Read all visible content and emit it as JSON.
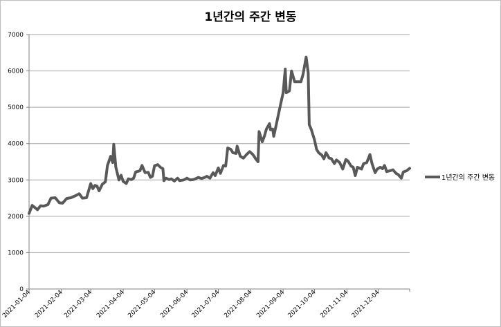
{
  "chart_data": {
    "type": "line",
    "title": "1년간의 주간 변동",
    "xlabel": "",
    "ylabel": "",
    "ylim": [
      0,
      7000
    ],
    "yticks": [
      0,
      1000,
      2000,
      3000,
      4000,
      5000,
      6000,
      7000
    ],
    "xticks": [
      "2021-01-04",
      "2021-02-04",
      "2021-03-04",
      "2021-04-04",
      "2021-05-04",
      "2021-06-04",
      "2021-07-04",
      "2021-08-04",
      "2021-09-04",
      "2021-10-04",
      "2021-11-04",
      "2021-12-04"
    ],
    "grid": true,
    "legend_position": "right",
    "series": [
      {
        "name": "1년간의 주간 변동",
        "color": "#595959",
        "points": [
          [
            "2021-01-04",
            2080
          ],
          [
            "2021-01-07",
            2300
          ],
          [
            "2021-01-10",
            2230
          ],
          [
            "2021-01-12",
            2180
          ],
          [
            "2021-01-15",
            2290
          ],
          [
            "2021-01-18",
            2280
          ],
          [
            "2021-01-22",
            2320
          ],
          [
            "2021-01-25",
            2500
          ],
          [
            "2021-01-29",
            2510
          ],
          [
            "2021-02-02",
            2370
          ],
          [
            "2021-02-05",
            2360
          ],
          [
            "2021-02-09",
            2490
          ],
          [
            "2021-02-13",
            2510
          ],
          [
            "2021-02-17",
            2560
          ],
          [
            "2021-02-21",
            2620
          ],
          [
            "2021-02-24",
            2500
          ],
          [
            "2021-02-28",
            2510
          ],
          [
            "2021-03-04",
            2900
          ],
          [
            "2021-03-06",
            2760
          ],
          [
            "2021-03-08",
            2850
          ],
          [
            "2021-03-10",
            2830
          ],
          [
            "2021-03-12",
            2700
          ],
          [
            "2021-03-15",
            2880
          ],
          [
            "2021-03-18",
            2950
          ],
          [
            "2021-03-20",
            3400
          ],
          [
            "2021-03-23",
            3650
          ],
          [
            "2021-03-25",
            3480
          ],
          [
            "2021-03-26",
            3980
          ],
          [
            "2021-03-28",
            3350
          ],
          [
            "2021-03-31",
            3000
          ],
          [
            "2021-04-02",
            3130
          ],
          [
            "2021-04-04",
            2960
          ],
          [
            "2021-04-07",
            2900
          ],
          [
            "2021-04-09",
            3030
          ],
          [
            "2021-04-12",
            3010
          ],
          [
            "2021-04-14",
            3050
          ],
          [
            "2021-04-16",
            3220
          ],
          [
            "2021-04-20",
            3250
          ],
          [
            "2021-04-22",
            3400
          ],
          [
            "2021-04-25",
            3200
          ],
          [
            "2021-04-28",
            3210
          ],
          [
            "2021-04-30",
            3070
          ],
          [
            "2021-05-02",
            3100
          ],
          [
            "2021-05-04",
            3390
          ],
          [
            "2021-05-07",
            3420
          ],
          [
            "2021-05-10",
            3340
          ],
          [
            "2021-05-12",
            3310
          ],
          [
            "2021-05-13",
            2980
          ],
          [
            "2021-05-15",
            3050
          ],
          [
            "2021-05-18",
            3010
          ],
          [
            "2021-05-20",
            3030
          ],
          [
            "2021-05-23",
            2970
          ],
          [
            "2021-05-26",
            3050
          ],
          [
            "2021-05-28",
            2980
          ],
          [
            "2021-06-01",
            3000
          ],
          [
            "2021-06-04",
            3050
          ],
          [
            "2021-06-07",
            3000
          ],
          [
            "2021-06-10",
            3010
          ],
          [
            "2021-06-12",
            3030
          ],
          [
            "2021-06-15",
            3070
          ],
          [
            "2021-06-18",
            3040
          ],
          [
            "2021-06-21",
            3070
          ],
          [
            "2021-06-23",
            3100
          ],
          [
            "2021-06-26",
            3050
          ],
          [
            "2021-06-29",
            3200
          ],
          [
            "2021-07-01",
            3120
          ],
          [
            "2021-07-04",
            3330
          ],
          [
            "2021-07-06",
            3180
          ],
          [
            "2021-07-09",
            3400
          ],
          [
            "2021-07-11",
            3380
          ],
          [
            "2021-07-13",
            3880
          ],
          [
            "2021-07-16",
            3840
          ],
          [
            "2021-07-18",
            3750
          ],
          [
            "2021-07-21",
            3730
          ],
          [
            "2021-07-22",
            3930
          ],
          [
            "2021-07-25",
            3650
          ],
          [
            "2021-07-28",
            3600
          ],
          [
            "2021-07-31",
            3700
          ],
          [
            "2021-08-03",
            3780
          ],
          [
            "2021-08-06",
            3700
          ],
          [
            "2021-08-09",
            3570
          ],
          [
            "2021-08-11",
            3500
          ],
          [
            "2021-08-12",
            4330
          ],
          [
            "2021-08-15",
            4050
          ],
          [
            "2021-08-17",
            4200
          ],
          [
            "2021-08-19",
            4400
          ],
          [
            "2021-08-22",
            4550
          ],
          [
            "2021-08-23",
            4380
          ],
          [
            "2021-08-25",
            4400
          ],
          [
            "2021-08-26",
            4200
          ],
          [
            "2021-08-29",
            4600
          ],
          [
            "2021-09-01",
            5000
          ],
          [
            "2021-09-04",
            5400
          ],
          [
            "2021-09-06",
            6050
          ],
          [
            "2021-09-07",
            5400
          ],
          [
            "2021-09-10",
            5450
          ],
          [
            "2021-09-12",
            6000
          ],
          [
            "2021-09-15",
            5700
          ],
          [
            "2021-09-17",
            5700
          ],
          [
            "2021-09-21",
            5700
          ],
          [
            "2021-09-23",
            5900
          ],
          [
            "2021-09-26",
            6380
          ],
          [
            "2021-09-28",
            5950
          ],
          [
            "2021-09-29",
            4520
          ],
          [
            "2021-10-01",
            4380
          ],
          [
            "2021-10-04",
            4100
          ],
          [
            "2021-10-06",
            3840
          ],
          [
            "2021-10-08",
            3750
          ],
          [
            "2021-10-11",
            3680
          ],
          [
            "2021-10-13",
            3580
          ],
          [
            "2021-10-15",
            3750
          ],
          [
            "2021-10-18",
            3600
          ],
          [
            "2021-10-20",
            3590
          ],
          [
            "2021-10-23",
            3450
          ],
          [
            "2021-10-25",
            3550
          ],
          [
            "2021-10-28",
            3480
          ],
          [
            "2021-10-31",
            3300
          ],
          [
            "2021-11-03",
            3560
          ],
          [
            "2021-11-05",
            3520
          ],
          [
            "2021-11-08",
            3380
          ],
          [
            "2021-11-10",
            3350
          ],
          [
            "2021-11-12",
            3120
          ],
          [
            "2021-11-14",
            3350
          ],
          [
            "2021-11-18",
            3300
          ],
          [
            "2021-11-20",
            3450
          ],
          [
            "2021-11-23",
            3480
          ],
          [
            "2021-11-26",
            3700
          ],
          [
            "2021-11-28",
            3450
          ],
          [
            "2021-12-01",
            3200
          ],
          [
            "2021-12-03",
            3300
          ],
          [
            "2021-12-06",
            3350
          ],
          [
            "2021-12-08",
            3310
          ],
          [
            "2021-12-10",
            3400
          ],
          [
            "2021-12-12",
            3230
          ],
          [
            "2021-12-15",
            3250
          ],
          [
            "2021-12-18",
            3280
          ],
          [
            "2021-12-21",
            3180
          ],
          [
            "2021-12-23",
            3150
          ],
          [
            "2021-12-26",
            3050
          ],
          [
            "2021-12-28",
            3220
          ],
          [
            "2021-12-31",
            3250
          ],
          [
            "2022-01-03",
            3320
          ]
        ]
      }
    ]
  }
}
